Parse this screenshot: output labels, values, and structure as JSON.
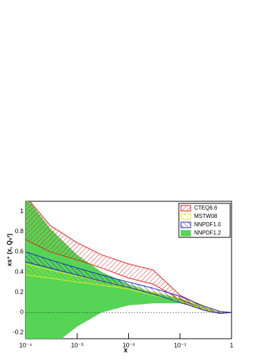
{
  "chart_data": {
    "type": "band",
    "xlabel": "x",
    "ylabel": "xs⁺ (x, Q₀²)",
    "xscale": "log",
    "legend": "top-right",
    "x": [
      0.0001,
      0.0003,
      0.001,
      0.003,
      0.01,
      0.03,
      0.1,
      0.3,
      0.6,
      1
    ],
    "xlim": [
      0.0001,
      1
    ],
    "xticks": [
      {
        "value": 0.0001,
        "label": "10⁻⁴"
      },
      {
        "value": 0.001,
        "label": "10⁻³"
      },
      {
        "value": 0.01,
        "label": "10⁻²"
      },
      {
        "value": 0.1,
        "label": "10⁻¹"
      },
      1
    ],
    "ylim": [
      -0.26,
      1.1
    ],
    "yticks": [
      -0.2,
      0,
      0.2,
      0.4,
      0.6,
      0.8,
      1
    ],
    "series": [
      {
        "name": "NNPDF1.2",
        "color": "#55d455",
        "fill": "solid",
        "upper": [
          1.15,
          0.83,
          0.57,
          0.4,
          0.28,
          0.2,
          0.14,
          0.05,
          0.005,
          0
        ],
        "lower": [
          -0.5,
          -0.35,
          -0.14,
          0.0,
          0.07,
          0.09,
          0.09,
          0.03,
          -0.01,
          0
        ]
      },
      {
        "name": "CTEQ6.6",
        "color": "#e02020",
        "fill": "hatch",
        "upper": [
          1.15,
          0.86,
          0.69,
          0.57,
          0.48,
          0.42,
          0.17,
          0.05,
          0.0,
          0
        ],
        "lower": [
          0.72,
          0.6,
          0.52,
          0.44,
          0.34,
          0.28,
          0.13,
          0.02,
          -0.01,
          0
        ]
      },
      {
        "name": "MSTW08",
        "color": "#e8e820",
        "fill": "hatch",
        "upper": [
          0.48,
          0.42,
          0.36,
          0.31,
          0.26,
          0.2,
          0.14,
          0.05,
          0.0,
          0
        ],
        "lower": [
          0.37,
          0.34,
          0.3,
          0.27,
          0.23,
          0.17,
          0.11,
          0.03,
          -0.01,
          0
        ]
      },
      {
        "name": "NNPDF1.0",
        "color": "#2020c0",
        "fill": "hatch",
        "upper": [
          0.6,
          0.52,
          0.44,
          0.37,
          0.3,
          0.24,
          0.16,
          0.06,
          0.01,
          0
        ],
        "lower": [
          0.5,
          0.44,
          0.37,
          0.31,
          0.25,
          0.18,
          0.1,
          0.02,
          -0.01,
          0
        ]
      }
    ],
    "legend_order": [
      1,
      2,
      3,
      0
    ]
  }
}
